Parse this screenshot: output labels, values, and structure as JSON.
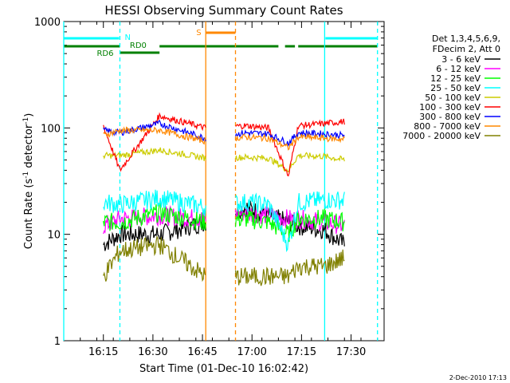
{
  "chart_data": {
    "type": "line",
    "title": "HESSI Observing Summary Count Rates",
    "xlabel": "Start Time (01-Dec-10 16:02:42)",
    "ylabel_main": "Count Rate (s",
    "ylabel_sup1": "-1",
    "ylabel_mid": " detector",
    "ylabel_sup2": "-1",
    "ylabel_end": ")",
    "yscale": "log",
    "ylim": [
      1,
      1000
    ],
    "xlim": [
      "16:03",
      "17:40"
    ],
    "x_ticks": [
      "16:15",
      "16:30",
      "16:45",
      "17:00",
      "17:15",
      "17:30"
    ],
    "y_ticks": [
      "1",
      "10",
      "100",
      "1000"
    ],
    "legend_header": [
      "Det 1,3,4,5,6,9,",
      "FDecim 2, Att 0"
    ],
    "legend_placement": "right",
    "footer_date": "2-Dec-2010 17:13",
    "flag_labels": {
      "night": "N",
      "saa": "S",
      "rd0": "RD0",
      "rd6": "RD6"
    },
    "gaps": [
      [
        "16:46",
        "16:55"
      ]
    ],
    "night_edges": [
      "16:03",
      "16:20",
      "17:22",
      "17:38"
    ],
    "saa_edges": [
      "16:46",
      "16:55"
    ],
    "series": [
      {
        "name": "3 - 6 keV",
        "color": "#000000",
        "points": [
          [
            "16:15",
            8
          ],
          [
            "16:20",
            10
          ],
          [
            "16:32",
            10
          ],
          [
            "16:46",
            13
          ],
          [
            "16:58",
            18
          ],
          [
            "17:05",
            15
          ],
          [
            "17:11",
            13
          ],
          [
            "17:14",
            12
          ],
          [
            "17:22",
            11
          ],
          [
            "17:28",
            8
          ]
        ]
      },
      {
        "name": "6 - 12 keV",
        "color": "#ff00ff",
        "points": [
          [
            "16:15",
            12
          ],
          [
            "16:20",
            14
          ],
          [
            "16:32",
            15
          ],
          [
            "16:46",
            14
          ],
          [
            "16:58",
            16
          ],
          [
            "17:05",
            15
          ],
          [
            "17:11",
            14
          ],
          [
            "17:14",
            14
          ],
          [
            "17:22",
            13
          ],
          [
            "17:28",
            12
          ]
        ]
      },
      {
        "name": "12 - 25 keV",
        "color": "#00ff00",
        "points": [
          [
            "16:15",
            13
          ],
          [
            "16:20",
            13
          ],
          [
            "16:32",
            16
          ],
          [
            "16:46",
            13
          ],
          [
            "16:58",
            14
          ],
          [
            "17:05",
            13
          ],
          [
            "17:11",
            10
          ],
          [
            "17:14",
            14
          ],
          [
            "17:22",
            14
          ],
          [
            "17:28",
            13
          ]
        ]
      },
      {
        "name": "25 - 50 keV",
        "color": "#00ffff",
        "points": [
          [
            "16:15",
            20
          ],
          [
            "16:20",
            19
          ],
          [
            "16:32",
            22
          ],
          [
            "16:46",
            18
          ],
          [
            "16:58",
            20
          ],
          [
            "17:05",
            19
          ],
          [
            "17:11",
            8
          ],
          [
            "17:14",
            20
          ],
          [
            "17:22",
            21
          ],
          [
            "17:28",
            21
          ]
        ]
      },
      {
        "name": "50 - 100 keV",
        "color": "#cccc00",
        "points": [
          [
            "16:15",
            55
          ],
          [
            "16:20",
            55
          ],
          [
            "16:32",
            62
          ],
          [
            "16:46",
            52
          ],
          [
            "16:58",
            53
          ],
          [
            "17:05",
            52
          ],
          [
            "17:11",
            40
          ],
          [
            "17:14",
            55
          ],
          [
            "17:22",
            54
          ],
          [
            "17:28",
            50
          ]
        ]
      },
      {
        "name": "100 - 300 keV",
        "color": "#ff0000",
        "points": [
          [
            "16:15",
            105
          ],
          [
            "16:20",
            40
          ],
          [
            "16:32",
            130
          ],
          [
            "16:46",
            100
          ],
          [
            "16:58",
            105
          ],
          [
            "17:05",
            100
          ],
          [
            "17:11",
            35
          ],
          [
            "17:14",
            105
          ],
          [
            "17:22",
            110
          ],
          [
            "17:28",
            115
          ]
        ]
      },
      {
        "name": "300 - 800 keV",
        "color": "#0000ff",
        "points": [
          [
            "16:15",
            95
          ],
          [
            "16:20",
            90
          ],
          [
            "16:32",
            110
          ],
          [
            "16:46",
            80
          ],
          [
            "16:58",
            90
          ],
          [
            "17:05",
            88
          ],
          [
            "17:11",
            72
          ],
          [
            "17:14",
            90
          ],
          [
            "17:22",
            88
          ],
          [
            "17:28",
            85
          ]
        ]
      },
      {
        "name": "800 - 7000 keV",
        "color": "#ff8800",
        "points": [
          [
            "16:15",
            85
          ],
          [
            "16:20",
            95
          ],
          [
            "16:32",
            95
          ],
          [
            "16:46",
            75
          ],
          [
            "16:58",
            82
          ],
          [
            "17:05",
            80
          ],
          [
            "17:11",
            65
          ],
          [
            "17:14",
            82
          ],
          [
            "17:22",
            80
          ],
          [
            "17:28",
            78
          ]
        ]
      },
      {
        "name": "7000 - 20000 keV",
        "color": "#808000",
        "points": [
          [
            "16:15",
            4
          ],
          [
            "16:20",
            7
          ],
          [
            "16:32",
            8
          ],
          [
            "16:46",
            4
          ],
          [
            "16:58",
            4
          ],
          [
            "17:05",
            4
          ],
          [
            "17:11",
            4
          ],
          [
            "17:14",
            5
          ],
          [
            "17:22",
            5
          ],
          [
            "17:28",
            6
          ]
        ]
      }
    ]
  }
}
